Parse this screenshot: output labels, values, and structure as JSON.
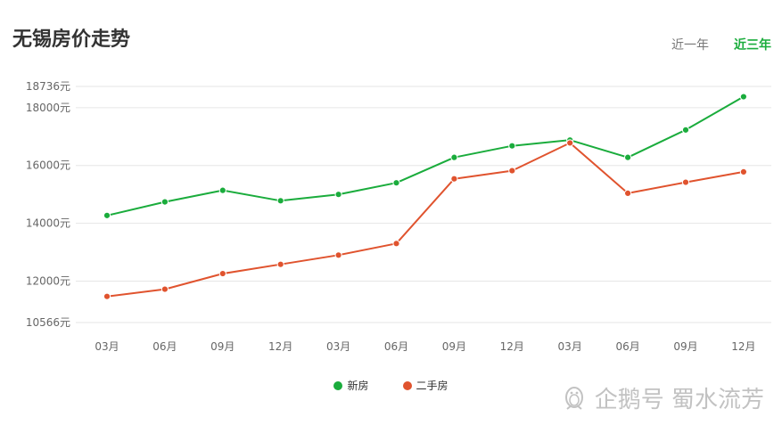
{
  "title": "无锡房价走势",
  "range_tabs": [
    {
      "label": "近一年",
      "active": false
    },
    {
      "label": "近三年",
      "active": true
    }
  ],
  "colors": {
    "new_house": "#1aac3c",
    "second_hand": "#e0532e",
    "active_tab": "#1aac3c"
  },
  "watermark": {
    "text": "企鹅号 蜀水流芳",
    "icon": "penguin-logo-icon"
  },
  "chart_data": {
    "type": "line",
    "title": "无锡房价走势",
    "categories": [
      "03月",
      "06月",
      "09月",
      "12月",
      "03月",
      "06月",
      "09月",
      "12月",
      "03月",
      "06月",
      "09月",
      "12月"
    ],
    "series": [
      {
        "name": "新房",
        "color": "#1aac3c",
        "values": [
          14270,
          14740,
          15140,
          14780,
          15000,
          15400,
          16280,
          16680,
          16880,
          16280,
          17230,
          18380
        ]
      },
      {
        "name": "二手房",
        "color": "#e0532e",
        "values": [
          11470,
          11720,
          12260,
          12580,
          12900,
          13300,
          15540,
          15820,
          16780,
          15040,
          15420,
          15780
        ]
      }
    ],
    "yticks": [
      {
        "value": 10566,
        "label": "10566元"
      },
      {
        "value": 12000,
        "label": "12000元"
      },
      {
        "value": 14000,
        "label": "14000元"
      },
      {
        "value": 16000,
        "label": "16000元"
      },
      {
        "value": 18000,
        "label": "18000元"
      },
      {
        "value": 18736,
        "label": "18736元"
      }
    ],
    "ylim": [
      10566,
      18736
    ],
    "grid": true,
    "legend_position": "bottom-center"
  }
}
